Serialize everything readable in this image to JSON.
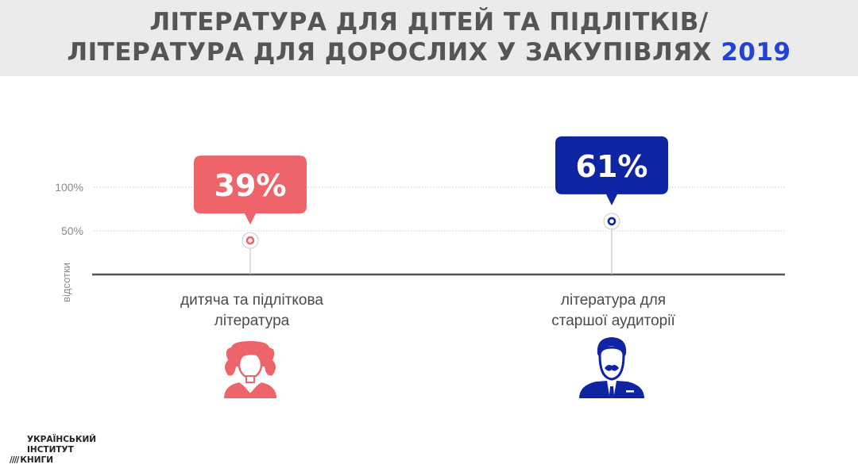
{
  "header": {
    "title_line1": "ЛІТЕРАТУРА ДЛЯ ДІТЕЙ ТА ПІДЛІТКІВ/",
    "title_line2": "ЛІТЕРАТУРА ДЛЯ ДОРОСЛИХ У ЗАКУПІВЛЯХ",
    "year": "2019"
  },
  "chart_data": {
    "type": "scatter",
    "ylabel": "відсотки",
    "y_ticks": [
      {
        "label": "100%",
        "value": 100
      },
      {
        "label": "50%",
        "value": 50
      }
    ],
    "ylim": [
      0,
      100
    ],
    "grid": true,
    "series": [
      {
        "category": "дитяча та підліткова література",
        "category_lines": [
          "дитяча та підліткова",
          "література"
        ],
        "value": 39,
        "label": "39%",
        "color": "#ed646a",
        "icon": "girl-icon"
      },
      {
        "category": "література для старшої аудиторії",
        "category_lines": [
          "література для",
          "старшої аудиторії"
        ],
        "value": 61,
        "label": "61%",
        "color": "#0f24a2",
        "icon": "elderly-man-icon"
      }
    ]
  },
  "logo": {
    "line1": "УКРАЇНСЬКИЙ",
    "line2": "ІНСТИТУТ",
    "line3": "КНИГИ"
  },
  "colors": {
    "header_bg": "#ebebeb",
    "title": "#555555",
    "year": "#2542d8",
    "axis": "#555555"
  }
}
